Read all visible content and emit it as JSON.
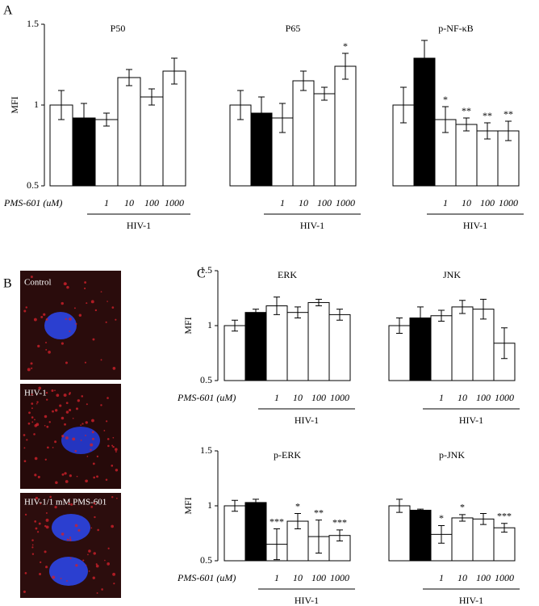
{
  "panel_labels": [
    "A",
    "B",
    "C"
  ],
  "images": [
    {
      "label": "Control"
    },
    {
      "label": "HIV-1"
    },
    {
      "label": "HIV-1/1 mM PMS-601"
    }
  ],
  "chart_data": [
    {
      "type": "bar",
      "title": "P50",
      "ylabel": "MFI",
      "xlabel": "PMS-601 (uM)",
      "group_label": "HIV-1",
      "categories": [
        null,
        null,
        "1",
        "10",
        "100",
        "1000"
      ],
      "values": [
        1.0,
        0.92,
        0.91,
        1.17,
        1.05,
        1.21
      ],
      "errors": [
        0.09,
        0.09,
        0.04,
        0.05,
        0.05,
        0.08
      ],
      "stars": [
        null,
        null,
        null,
        null,
        null,
        null
      ],
      "colors": [
        "#ffffff",
        "#000000",
        "#ffffff",
        "#ffffff",
        "#ffffff",
        "#ffffff"
      ],
      "ylim": [
        0.5,
        1.5
      ],
      "yticks": [
        0.5,
        1,
        1.5
      ]
    },
    {
      "type": "bar",
      "title": "P65",
      "group_label": "HIV-1",
      "categories": [
        null,
        null,
        "1",
        "10",
        "100",
        "1000"
      ],
      "values": [
        1.0,
        0.95,
        0.92,
        1.15,
        1.07,
        1.24
      ],
      "errors": [
        0.09,
        0.1,
        0.09,
        0.06,
        0.04,
        0.08
      ],
      "stars": [
        null,
        null,
        null,
        null,
        null,
        "*"
      ],
      "colors": [
        "#ffffff",
        "#000000",
        "#ffffff",
        "#ffffff",
        "#ffffff",
        "#ffffff"
      ],
      "ylim": [
        0.5,
        1.5
      ]
    },
    {
      "type": "bar",
      "title": "p-NF-κB",
      "group_label": "HIV-1",
      "categories": [
        null,
        null,
        "1",
        "10",
        "100",
        "1000"
      ],
      "values": [
        1.0,
        1.29,
        0.91,
        0.88,
        0.84,
        0.84
      ],
      "errors": [
        0.11,
        0.11,
        0.08,
        0.04,
        0.05,
        0.06
      ],
      "stars": [
        null,
        null,
        "*",
        "**",
        "**",
        "**"
      ],
      "colors": [
        "#ffffff",
        "#000000",
        "#ffffff",
        "#ffffff",
        "#ffffff",
        "#ffffff"
      ],
      "ylim": [
        0.5,
        1.5
      ]
    },
    {
      "type": "bar",
      "title": "ERK",
      "ylabel": "MFI",
      "xlabel": "PMS-601 (uM)",
      "group_label": "HIV-1",
      "categories": [
        null,
        null,
        "1",
        "10",
        "100",
        "1000"
      ],
      "values": [
        1.0,
        1.12,
        1.18,
        1.12,
        1.21,
        1.1
      ],
      "errors": [
        0.05,
        0.03,
        0.08,
        0.05,
        0.03,
        0.05
      ],
      "stars": [
        null,
        null,
        null,
        null,
        null,
        null
      ],
      "colors": [
        "#ffffff",
        "#000000",
        "#ffffff",
        "#ffffff",
        "#ffffff",
        "#ffffff"
      ],
      "ylim": [
        0.5,
        1.5
      ],
      "yticks": [
        0.5,
        1,
        1.5
      ]
    },
    {
      "type": "bar",
      "title": "JNK",
      "group_label": "HIV-1",
      "categories": [
        null,
        null,
        "1",
        "10",
        "100",
        "1000"
      ],
      "values": [
        1.0,
        1.07,
        1.09,
        1.17,
        1.15,
        0.84
      ],
      "errors": [
        0.07,
        0.1,
        0.05,
        0.06,
        0.09,
        0.14
      ],
      "stars": [
        null,
        null,
        null,
        null,
        null,
        null
      ],
      "colors": [
        "#ffffff",
        "#000000",
        "#ffffff",
        "#ffffff",
        "#ffffff",
        "#ffffff"
      ],
      "ylim": [
        0.5,
        1.5
      ]
    },
    {
      "type": "bar",
      "title": "p-ERK",
      "ylabel": "MFI",
      "xlabel": "PMS-601 (uM)",
      "group_label": "HIV-1",
      "categories": [
        null,
        null,
        "1",
        "10",
        "100",
        "1000"
      ],
      "values": [
        1.0,
        1.03,
        0.65,
        0.86,
        0.72,
        0.73
      ],
      "errors": [
        0.05,
        0.03,
        0.14,
        0.07,
        0.15,
        0.05
      ],
      "stars": [
        null,
        null,
        "***",
        "*",
        "**",
        "***"
      ],
      "colors": [
        "#ffffff",
        "#000000",
        "#ffffff",
        "#ffffff",
        "#ffffff",
        "#ffffff"
      ],
      "ylim": [
        0.5,
        1.5
      ],
      "yticks": [
        0.5,
        1,
        1.5
      ]
    },
    {
      "type": "bar",
      "title": "p-JNK",
      "group_label": "HIV-1",
      "categories": [
        null,
        null,
        "1",
        "10",
        "100",
        "1000"
      ],
      "values": [
        1.0,
        0.96,
        0.74,
        0.89,
        0.88,
        0.8
      ],
      "errors": [
        0.06,
        0.01,
        0.08,
        0.03,
        0.05,
        0.04
      ],
      "stars": [
        null,
        null,
        "*",
        "*",
        null,
        "***"
      ],
      "colors": [
        "#ffffff",
        "#000000",
        "#ffffff",
        "#ffffff",
        "#ffffff",
        "#ffffff"
      ],
      "ylim": [
        0.5,
        1.5
      ]
    }
  ]
}
